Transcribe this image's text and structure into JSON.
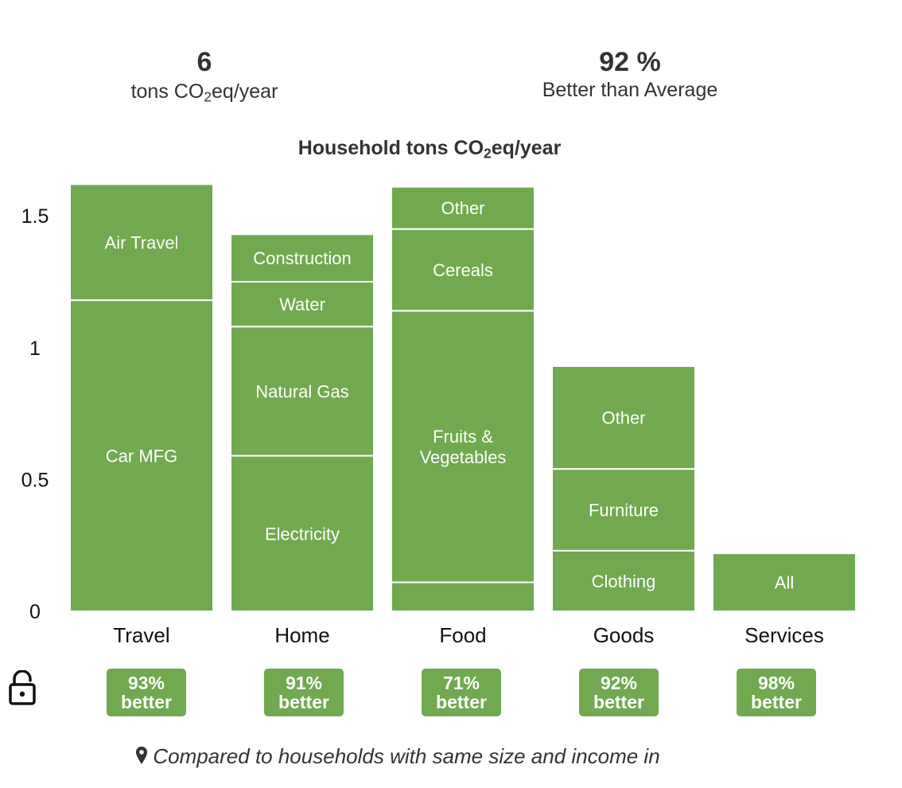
{
  "summary": {
    "total_value": "6",
    "total_unit_pre": "tons CO",
    "total_unit_sub": "2",
    "total_unit_post": "eq/year",
    "comparison_value": "92 %",
    "comparison_caption": "Better than Average"
  },
  "chart_data": {
    "type": "bar",
    "stacked": true,
    "title_pre": "Household tons CO",
    "title_sub": "2",
    "title_post": "eq/year",
    "ylim": [
      0,
      1.6
    ],
    "yticks": [
      {
        "value": 0,
        "label": "0"
      },
      {
        "value": 0.5,
        "label": "0.5"
      },
      {
        "value": 1,
        "label": "1"
      },
      {
        "value": 1.5,
        "label": "1.5"
      }
    ],
    "bar_color": "#70a94f",
    "label_color": "#ffffff",
    "categories": [
      "Travel",
      "Home",
      "Food",
      "Goods",
      "Services"
    ],
    "stacks": [
      {
        "category": "Travel",
        "segments": [
          {
            "label": "Car MFG",
            "value": 1.18
          },
          {
            "label": "Air Travel",
            "value": 0.44
          }
        ]
      },
      {
        "category": "Home",
        "segments": [
          {
            "label": "Electricity",
            "value": 0.59
          },
          {
            "label": "Natural Gas",
            "value": 0.49
          },
          {
            "label": "Water",
            "value": 0.17
          },
          {
            "label": "Construction",
            "value": 0.18
          }
        ]
      },
      {
        "category": "Food",
        "segments": [
          {
            "label": "",
            "value": 0.11
          },
          {
            "label": "Fruits & Vegetables",
            "value": 1.03
          },
          {
            "label": "Cereals",
            "value": 0.31
          },
          {
            "label": "Other",
            "value": 0.16
          }
        ]
      },
      {
        "category": "Goods",
        "segments": [
          {
            "label": "Clothing",
            "value": 0.23
          },
          {
            "label": "Furniture",
            "value": 0.31
          },
          {
            "label": "Other",
            "value": 0.39
          }
        ]
      },
      {
        "category": "Services",
        "segments": [
          {
            "label": "All",
            "value": 0.22
          }
        ]
      }
    ]
  },
  "badges": [
    {
      "percent": "93%",
      "text": "better"
    },
    {
      "percent": "91%",
      "text": "better"
    },
    {
      "percent": "71%",
      "text": "better"
    },
    {
      "percent": "92%",
      "text": "better"
    },
    {
      "percent": "98%",
      "text": "better"
    }
  ],
  "lock_icon": "lock-open-icon",
  "footer": {
    "icon": "map-pin-icon",
    "text": "Compared to households with same size and income in"
  }
}
